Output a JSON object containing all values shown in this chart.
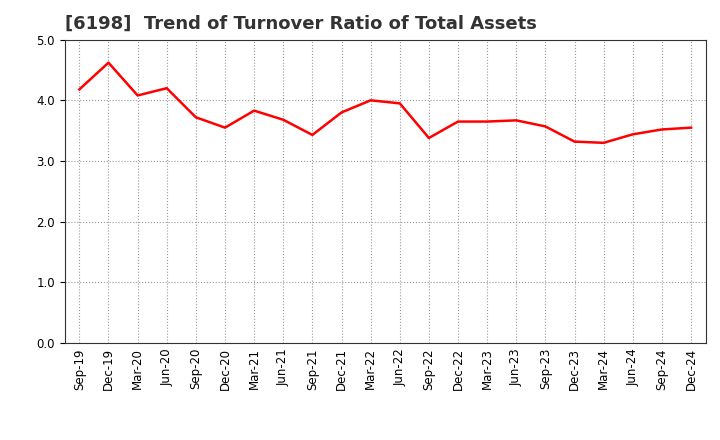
{
  "title": "[6198]  Trend of Turnover Ratio of Total Assets",
  "x_labels": [
    "Sep-19",
    "Dec-19",
    "Mar-20",
    "Jun-20",
    "Sep-20",
    "Dec-20",
    "Mar-21",
    "Jun-21",
    "Sep-21",
    "Dec-21",
    "Mar-22",
    "Jun-22",
    "Sep-22",
    "Dec-22",
    "Mar-23",
    "Jun-23",
    "Sep-23",
    "Dec-23",
    "Mar-24",
    "Jun-24",
    "Sep-24",
    "Dec-24"
  ],
  "y_values": [
    4.18,
    4.62,
    4.08,
    4.2,
    3.72,
    3.55,
    3.83,
    3.68,
    3.43,
    3.8,
    4.0,
    3.95,
    3.38,
    3.65,
    3.65,
    3.67,
    3.57,
    3.32,
    3.3,
    3.44,
    3.52,
    3.55
  ],
  "line_color": "#FF0000",
  "line_width": 1.8,
  "ylim": [
    0.0,
    5.0
  ],
  "yticks": [
    0.0,
    1.0,
    2.0,
    3.0,
    4.0,
    5.0
  ],
  "background_color": "#ffffff",
  "plot_bg_color": "#ffffff",
  "grid_color": "#999999",
  "title_fontsize": 13,
  "tick_fontsize": 8.5,
  "title_fontweight": "bold"
}
